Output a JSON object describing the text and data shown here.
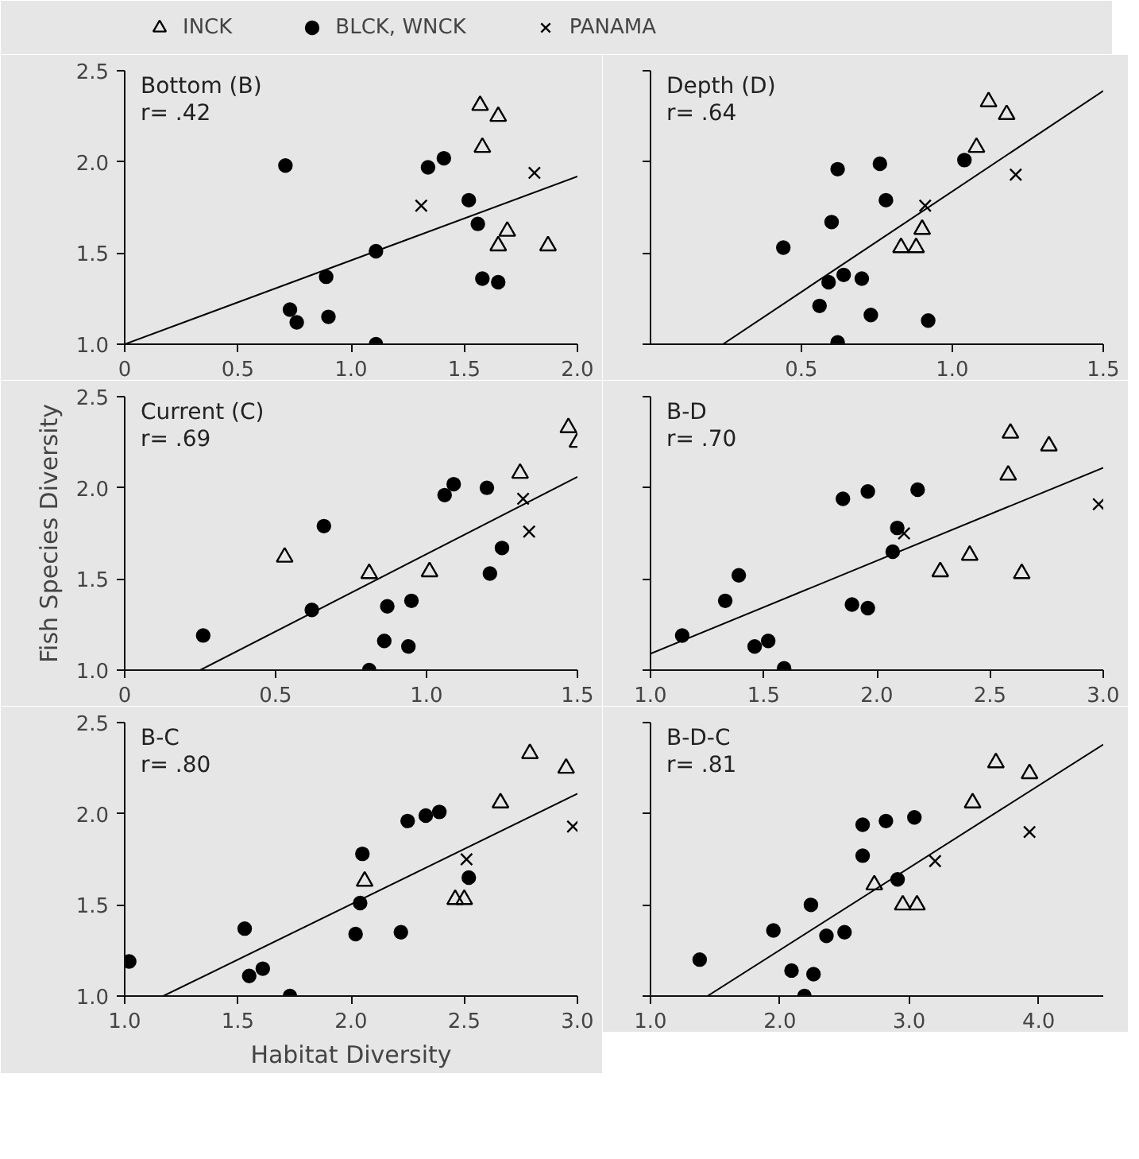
{
  "chart_data": [
    {
      "type": "scatter",
      "annotations": [
        "Bottom (B)",
        "r= .42"
      ],
      "legend": "top",
      "grid": false,
      "xlim": [
        0,
        2.0
      ],
      "ylim": [
        1.0,
        2.5
      ],
      "xticks": [
        0,
        {
          "value": 0.5,
          "label": "0.5"
        },
        {
          "value": 1,
          "label": "1.0"
        },
        {
          "value": 1.5,
          "label": "1.5"
        },
        {
          "value": 2,
          "label": "2.0"
        }
      ],
      "yticks": [
        {
          "value": 1,
          "label": "1.0"
        },
        {
          "value": 1.5,
          "label": "1.5"
        },
        {
          "value": 2,
          "label": "2.0"
        },
        {
          "value": 2.5,
          "label": "2.5"
        }
      ],
      "series": [
        {
          "name": "INCK",
          "color": "#000000",
          "marker": "triangle",
          "x": [
            1.57,
            1.65,
            1.58,
            1.69,
            1.65,
            1.87
          ],
          "values": [
            2.31,
            2.25,
            2.08,
            1.62,
            1.54,
            1.54
          ]
        },
        {
          "name": "BLCK, WNCK",
          "color": "#000000",
          "marker": "circle",
          "x": [
            0.71,
            1.34,
            1.41,
            1.52,
            1.56,
            1.11,
            0.89,
            0.73,
            0.76,
            0.9,
            1.11,
            1.58,
            1.65
          ],
          "values": [
            1.98,
            1.97,
            2.02,
            1.79,
            1.66,
            1.51,
            1.37,
            1.19,
            1.12,
            1.15,
            1.0,
            1.36,
            1.34
          ]
        },
        {
          "name": "PANAMA",
          "color": "#000000",
          "marker": "cross",
          "x": [
            1.31,
            1.81
          ],
          "values": [
            1.76,
            1.94
          ]
        },
        {
          "type": "line",
          "color": "#000000",
          "marker": "none",
          "line_style": "solid",
          "x": [
            0,
            2.0
          ],
          "values": [
            1.0,
            1.92
          ]
        }
      ]
    },
    {
      "type": "scatter",
      "annotations": [
        "Depth (D)",
        "r= .64"
      ],
      "grid": false,
      "tick_labels": "x",
      "xlim": [
        0,
        1.5
      ],
      "ylim": [
        1.0,
        2.5
      ],
      "xticks": [
        {
          "value": 0.5,
          "label": "0.5"
        },
        {
          "value": 1,
          "label": "1.0"
        },
        {
          "value": 1.5,
          "label": "1.5"
        }
      ],
      "yticks": [
        {
          "value": 1,
          "label": null
        },
        {
          "value": 1.5,
          "label": null
        },
        {
          "value": 2,
          "label": null
        },
        {
          "value": 2.5,
          "label": null
        }
      ],
      "series": [
        {
          "color": "#000000",
          "marker": "triangle",
          "x": [
            1.12,
            1.18,
            1.08,
            0.9,
            0.83,
            0.88
          ],
          "values": [
            2.33,
            2.26,
            2.08,
            1.63,
            1.53,
            1.53
          ]
        },
        {
          "color": "#000000",
          "marker": "circle",
          "x": [
            0.62,
            0.76,
            0.78,
            0.6,
            0.44,
            0.59,
            0.64,
            0.7,
            0.56,
            0.73,
            0.92,
            0.62,
            1.04
          ],
          "values": [
            1.96,
            1.99,
            1.79,
            1.67,
            1.53,
            1.34,
            1.38,
            1.36,
            1.21,
            1.16,
            1.13,
            1.01,
            2.01
          ]
        },
        {
          "color": "#000000",
          "marker": "cross",
          "x": [
            0.91,
            1.21
          ],
          "values": [
            1.76,
            1.93
          ]
        },
        {
          "type": "line",
          "color": "#000000",
          "marker": "none",
          "line_style": "solid",
          "x": [
            0.24,
            1.5
          ],
          "values": [
            1.0,
            2.39
          ]
        }
      ]
    },
    {
      "type": "scatter",
      "annotations": [
        "Current (C)",
        "r= .69"
      ],
      "ylabel": "Fish Species Diversity",
      "grid": false,
      "xlim": [
        0,
        1.5
      ],
      "ylim": [
        1.0,
        2.5
      ],
      "xticks": [
        0,
        {
          "value": 0.5,
          "label": "0.5"
        },
        {
          "value": 1,
          "label": "1.0"
        },
        {
          "value": 1.5,
          "label": "1.5"
        }
      ],
      "yticks": [
        {
          "value": 1,
          "label": "1.0"
        },
        {
          "value": 1.5,
          "label": "1.5"
        },
        {
          "value": 2,
          "label": "2.0"
        },
        {
          "value": 2.5,
          "label": "2.5"
        }
      ],
      "series": [
        {
          "color": "#000000",
          "marker": "triangle",
          "x": [
            0.53,
            0.81,
            1.01,
            1.31,
            1.47,
            1.5
          ],
          "values": [
            1.62,
            1.53,
            1.54,
            2.08,
            2.33,
            2.25
          ]
        },
        {
          "color": "#000000",
          "marker": "circle",
          "x": [
            0.26,
            0.66,
            0.62,
            0.87,
            0.86,
            0.81,
            0.95,
            0.94,
            1.06,
            1.09,
            1.2,
            1.25,
            1.21
          ],
          "values": [
            1.19,
            1.79,
            1.33,
            1.35,
            1.16,
            1.0,
            1.38,
            1.13,
            1.96,
            2.02,
            2.0,
            1.67,
            1.53
          ]
        },
        {
          "color": "#000000",
          "marker": "cross",
          "x": [
            1.32,
            1.34
          ],
          "values": [
            1.94,
            1.76
          ]
        },
        {
          "type": "line",
          "color": "#000000",
          "marker": "none",
          "line_style": "solid",
          "x": [
            0.25,
            1.5
          ],
          "values": [
            1.0,
            2.06
          ]
        }
      ]
    },
    {
      "type": "scatter",
      "annotations": [
        "B-D",
        "r= .70"
      ],
      "grid": false,
      "tick_labels": "x",
      "xlim": [
        1.0,
        3.0
      ],
      "ylim": [
        1.0,
        2.5
      ],
      "xticks": [
        {
          "value": 1,
          "label": "1.0"
        },
        {
          "value": 1.5,
          "label": "1.5"
        },
        {
          "value": 2,
          "label": "2.0"
        },
        {
          "value": 2.5,
          "label": "2.5"
        },
        {
          "value": 3,
          "label": "3.0"
        }
      ],
      "yticks": [
        {
          "value": 1,
          "label": null
        },
        {
          "value": 1.5,
          "label": null
        },
        {
          "value": 2,
          "label": null
        },
        {
          "value": 2.5,
          "label": null
        }
      ],
      "series": [
        {
          "color": "#000000",
          "marker": "triangle",
          "x": [
            2.59,
            2.76,
            2.58,
            2.41,
            2.28,
            2.64
          ],
          "values": [
            2.3,
            2.23,
            2.07,
            1.63,
            1.54,
            1.53
          ]
        },
        {
          "color": "#000000",
          "marker": "circle",
          "x": [
            1.14,
            1.33,
            1.39,
            1.46,
            1.52,
            1.59,
            1.85,
            1.96,
            2.18,
            2.09,
            2.07,
            1.89,
            1.96
          ],
          "values": [
            1.19,
            1.38,
            1.52,
            1.13,
            1.16,
            1.01,
            1.94,
            1.98,
            1.99,
            1.78,
            1.65,
            1.36,
            1.34
          ]
        },
        {
          "color": "#000000",
          "marker": "cross",
          "x": [
            2.12,
            2.98
          ],
          "values": [
            1.75,
            1.91
          ]
        },
        {
          "type": "line",
          "color": "#000000",
          "marker": "none",
          "line_style": "solid",
          "x": [
            1.0,
            3.0
          ],
          "values": [
            1.09,
            2.11
          ]
        }
      ]
    },
    {
      "type": "scatter",
      "annotations": [
        "B-C",
        "r= .80"
      ],
      "xlabel": "Habitat Diversity",
      "grid": false,
      "xlim": [
        1.0,
        3.0
      ],
      "ylim": [
        1.0,
        2.5
      ],
      "xticks": [
        {
          "value": 1,
          "label": "1.0"
        },
        {
          "value": 1.5,
          "label": "1.5"
        },
        {
          "value": 2,
          "label": "2.0"
        },
        {
          "value": 2.5,
          "label": "2.5"
        },
        {
          "value": 3,
          "label": "3.0"
        }
      ],
      "yticks": [
        {
          "value": 1,
          "label": "1.0"
        },
        {
          "value": 1.5,
          "label": "1.5"
        },
        {
          "value": 2,
          "label": "2.0"
        },
        {
          "value": 2.5,
          "label": "2.5"
        }
      ],
      "series": [
        {
          "color": "#000000",
          "marker": "triangle",
          "x": [
            2.06,
            2.46,
            2.5,
            2.66,
            2.79,
            2.95
          ],
          "values": [
            1.63,
            1.53,
            1.53,
            2.06,
            2.33,
            2.25
          ]
        },
        {
          "color": "#000000",
          "marker": "circle",
          "x": [
            1.02,
            1.53,
            1.55,
            1.61,
            1.73,
            2.05,
            2.04,
            2.02,
            2.25,
            2.33,
            2.39,
            2.22,
            2.52
          ],
          "values": [
            1.19,
            1.37,
            1.11,
            1.15,
            1.0,
            1.78,
            1.51,
            1.34,
            1.96,
            1.99,
            2.01,
            1.35,
            1.65
          ]
        },
        {
          "color": "#000000",
          "marker": "cross",
          "x": [
            2.51,
            2.98
          ],
          "values": [
            1.75,
            1.93
          ]
        },
        {
          "type": "line",
          "color": "#000000",
          "marker": "none",
          "line_style": "solid",
          "x": [
            1.17,
            3.0
          ],
          "values": [
            1.0,
            2.11
          ]
        }
      ]
    },
    {
      "type": "scatter",
      "annotations": [
        "B-D-C",
        "r= .81"
      ],
      "grid": false,
      "tick_labels": "x",
      "xlim": [
        1.0,
        4.5
      ],
      "ylim": [
        1.0,
        2.5
      ],
      "xticks": [
        {
          "value": 1,
          "label": "1.0"
        },
        {
          "value": 2,
          "label": "2.0"
        },
        {
          "value": 3,
          "label": "3.0"
        },
        {
          "value": 4,
          "label": "4.0"
        }
      ],
      "yticks": [
        {
          "value": 1,
          "label": null
        },
        {
          "value": 1.5,
          "label": null
        },
        {
          "value": 2,
          "label": null
        },
        {
          "value": 2.5,
          "label": null
        }
      ],
      "series": [
        {
          "color": "#000000",
          "marker": "triangle",
          "x": [
            2.73,
            2.95,
            3.06,
            3.49,
            3.67,
            3.93
          ],
          "values": [
            1.61,
            1.5,
            1.5,
            2.06,
            2.28,
            2.22
          ]
        },
        {
          "color": "#000000",
          "marker": "circle",
          "x": [
            1.38,
            1.95,
            2.24,
            2.36,
            2.5,
            2.09,
            2.26,
            2.19,
            2.64,
            2.64,
            2.82,
            3.04,
            2.91
          ],
          "values": [
            1.2,
            1.36,
            1.5,
            1.33,
            1.35,
            1.14,
            1.12,
            1.0,
            1.77,
            1.94,
            1.96,
            1.98,
            1.64
          ]
        },
        {
          "color": "#000000",
          "marker": "cross",
          "x": [
            3.2,
            3.93
          ],
          "values": [
            1.74,
            1.9
          ]
        },
        {
          "type": "line",
          "color": "#000000",
          "marker": "none",
          "line_style": "solid",
          "x": [
            1.44,
            4.5
          ],
          "values": [
            1.0,
            2.38
          ]
        }
      ]
    }
  ]
}
